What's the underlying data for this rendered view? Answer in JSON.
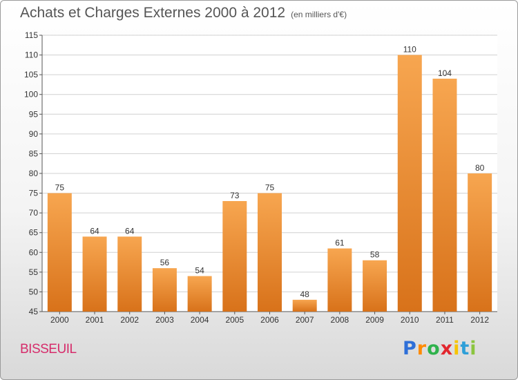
{
  "header": {
    "title": "Achats et Charges Externes 2000 à 2012",
    "unit": "(en milliers d'€)"
  },
  "footer": {
    "city": "BISSEUIL",
    "logo_text": "Proxiti"
  },
  "colors": {
    "bar_top": "#f7a650",
    "bar_bottom": "#d8721a",
    "city": "#d62b6a",
    "grid": "#d0d0d0"
  },
  "chart_data": {
    "type": "bar",
    "title": "Achats et Charges Externes 2000 à 2012",
    "subtitle": "(en milliers d'€)",
    "categories": [
      "2000",
      "2001",
      "2002",
      "2003",
      "2004",
      "2005",
      "2006",
      "2007",
      "2008",
      "2009",
      "2010",
      "2011",
      "2012"
    ],
    "values": [
      75,
      64,
      64,
      56,
      54,
      73,
      75,
      48,
      61,
      58,
      110,
      104,
      80
    ],
    "data_labels": [
      "75",
      "64",
      "64",
      "56",
      "54",
      "73",
      "75",
      "48",
      "61",
      "58",
      "110",
      "104",
      "80"
    ],
    "y_ticks": [
      45,
      50,
      55,
      60,
      65,
      70,
      75,
      80,
      85,
      90,
      95,
      100,
      105,
      110,
      115
    ],
    "xlabel": "",
    "ylabel": "",
    "ylim": [
      45,
      115
    ],
    "grid": true,
    "legend": "none"
  }
}
